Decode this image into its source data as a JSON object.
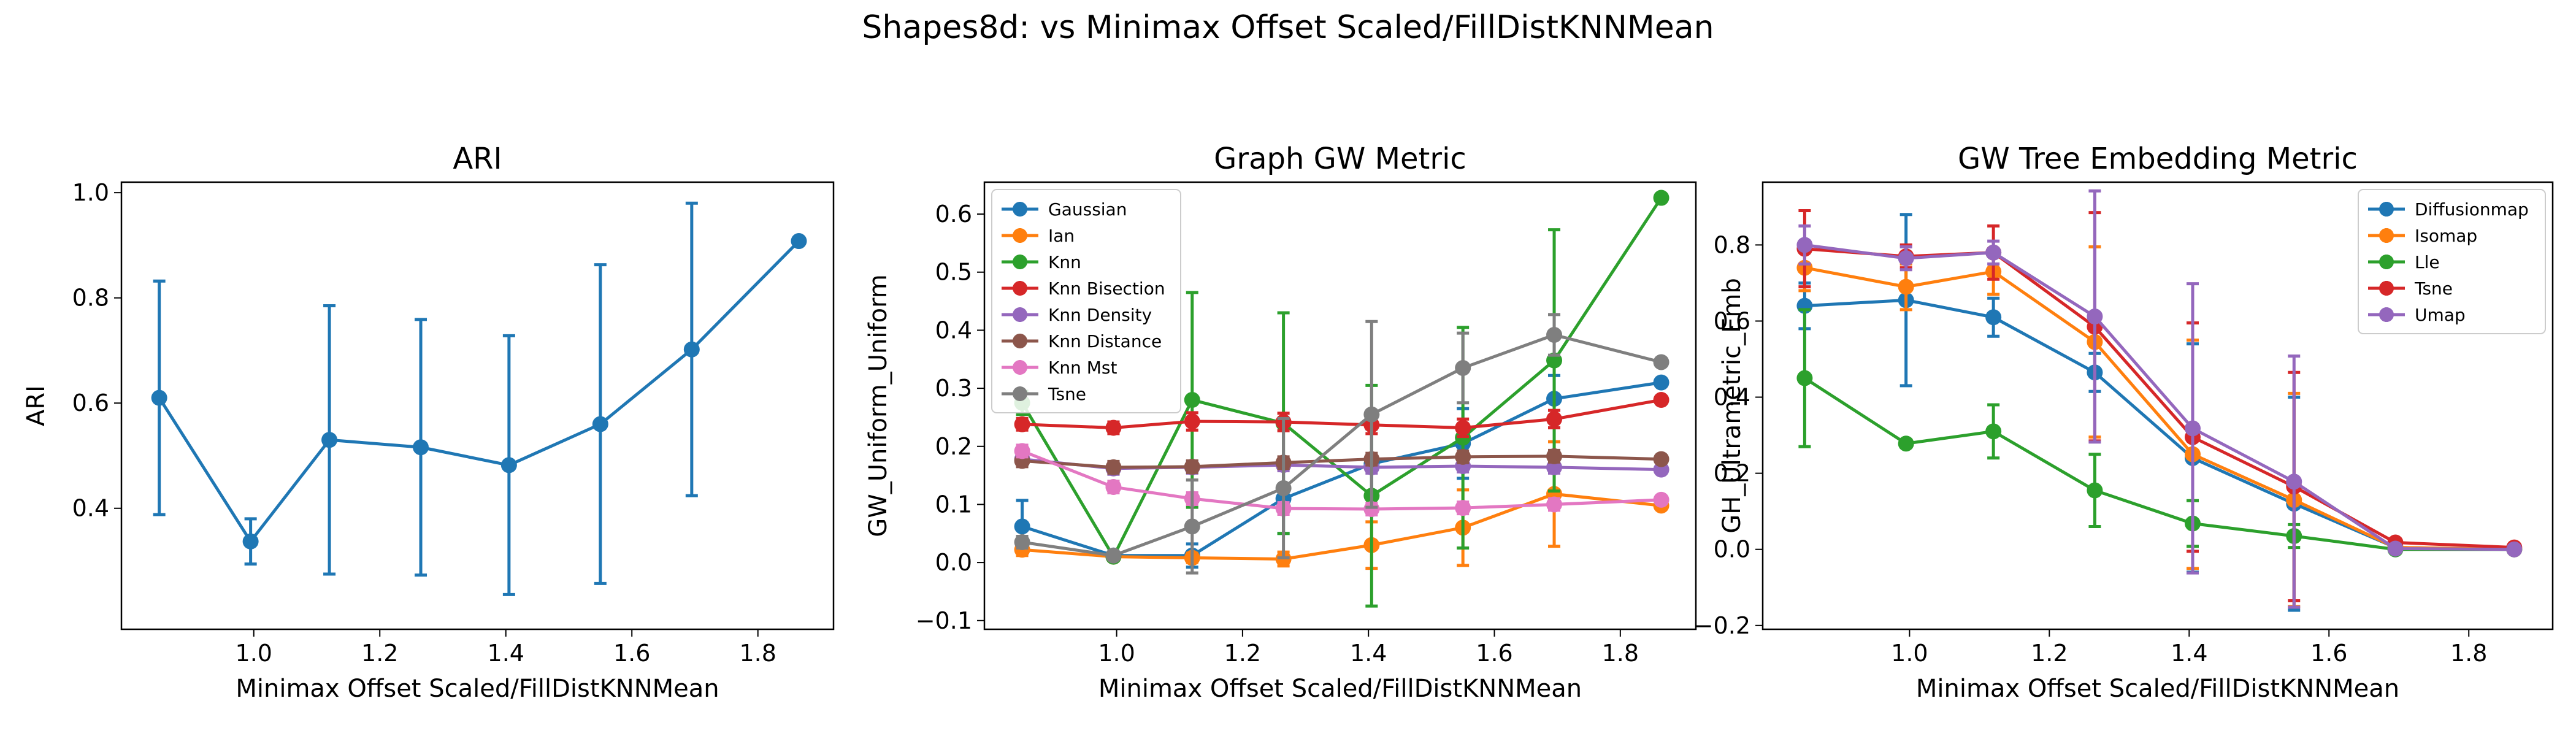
{
  "figure": {
    "title": "Shapes8d: vs Minimax Offset Scaled/FillDistKNNMean"
  },
  "chart_data": [
    {
      "type": "line",
      "title": "ARI",
      "xlabel": "Minimax Offset Scaled/FillDistKNNMean",
      "ylabel": "ARI",
      "xlim": [
        0.79,
        1.92
      ],
      "ylim": [
        0.17,
        1.02
      ],
      "xticks": [
        1.0,
        1.2,
        1.4,
        1.6,
        1.8
      ],
      "xtick_labels": [
        "1.0",
        "1.2",
        "1.4",
        "1.6",
        "1.8"
      ],
      "yticks": [
        0.4,
        0.6,
        0.8,
        1.0
      ],
      "ytick_labels": [
        "0.4",
        "0.6",
        "0.8",
        "1.0"
      ],
      "legend": null,
      "grid": false,
      "series": [
        {
          "name": "",
          "color": "#1f77b4",
          "x": [
            0.85,
            0.995,
            1.12,
            1.265,
            1.405,
            1.55,
            1.695,
            1.865
          ],
          "y": [
            0.61,
            0.337,
            0.53,
            0.516,
            0.482,
            0.56,
            0.702,
            0.908
          ],
          "err": [
            0.222,
            0.043,
            0.255,
            0.243,
            0.246,
            0.303,
            0.278,
            0.0
          ]
        }
      ]
    },
    {
      "type": "line",
      "title": "Graph GW Metric",
      "xlabel": "Minimax Offset Scaled/FillDistKNNMean",
      "ylabel": "GW_Uniform_Uniform",
      "xlim": [
        0.79,
        1.92
      ],
      "ylim": [
        -0.115,
        0.655
      ],
      "xticks": [
        1.0,
        1.2,
        1.4,
        1.6,
        1.8
      ],
      "xtick_labels": [
        "1.0",
        "1.2",
        "1.4",
        "1.6",
        "1.8"
      ],
      "yticks": [
        -0.1,
        0.0,
        0.1,
        0.2,
        0.3,
        0.4,
        0.5,
        0.6
      ],
      "ytick_labels": [
        "−0.1",
        "0.0",
        "0.1",
        "0.2",
        "0.3",
        "0.4",
        "0.5",
        "0.6"
      ],
      "legend": "top-left",
      "grid": false,
      "series": [
        {
          "name": "Gaussian",
          "color": "#1f77b4",
          "x": [
            0.85,
            0.995,
            1.12,
            1.265,
            1.405,
            1.55,
            1.695,
            1.865
          ],
          "y": [
            0.062,
            0.012,
            0.012,
            0.11,
            0.17,
            0.205,
            0.282,
            0.31
          ],
          "err": [
            0.045,
            0.005,
            0.02,
            0.06,
            0.06,
            0.06,
            0.04,
            0.0
          ]
        },
        {
          "name": "Ian",
          "color": "#ff7f0e",
          "x": [
            0.85,
            0.995,
            1.12,
            1.265,
            1.405,
            1.55,
            1.695,
            1.865
          ],
          "y": [
            0.022,
            0.01,
            0.008,
            0.006,
            0.03,
            0.06,
            0.118,
            0.098
          ],
          "err": [
            0.01,
            0.005,
            0.008,
            0.012,
            0.04,
            0.065,
            0.09,
            0.0
          ]
        },
        {
          "name": "Knn",
          "color": "#2ca02c",
          "x": [
            0.85,
            0.995,
            1.12,
            1.265,
            1.405,
            1.55,
            1.695,
            1.865
          ],
          "y": [
            0.275,
            0.01,
            0.28,
            0.24,
            0.115,
            0.215,
            0.348,
            0.628
          ],
          "err": [
            0.02,
            0.0,
            0.185,
            0.19,
            0.19,
            0.19,
            0.225,
            0.0
          ]
        },
        {
          "name": "Knn Bisection",
          "color": "#d62728",
          "x": [
            0.85,
            0.995,
            1.12,
            1.265,
            1.405,
            1.55,
            1.695,
            1.865
          ],
          "y": [
            0.238,
            0.232,
            0.243,
            0.242,
            0.237,
            0.232,
            0.247,
            0.28
          ],
          "err": [
            0.01,
            0.01,
            0.015,
            0.015,
            0.015,
            0.015,
            0.015,
            0.0
          ]
        },
        {
          "name": "Knn Density",
          "color": "#9467bd",
          "x": [
            0.85,
            0.995,
            1.12,
            1.265,
            1.405,
            1.55,
            1.695,
            1.865
          ],
          "y": [
            0.178,
            0.162,
            0.164,
            0.168,
            0.164,
            0.166,
            0.164,
            0.16
          ],
          "err": [
            0.01,
            0.01,
            0.01,
            0.01,
            0.01,
            0.01,
            0.01,
            0.0
          ]
        },
        {
          "name": "Knn Distance",
          "color": "#8c564b",
          "x": [
            0.85,
            0.995,
            1.12,
            1.265,
            1.405,
            1.55,
            1.695,
            1.865
          ],
          "y": [
            0.175,
            0.164,
            0.165,
            0.172,
            0.178,
            0.182,
            0.183,
            0.178
          ],
          "err": [
            0.01,
            0.01,
            0.01,
            0.01,
            0.01,
            0.01,
            0.01,
            0.0
          ]
        },
        {
          "name": "Knn Mst",
          "color": "#e377c2",
          "x": [
            0.85,
            0.995,
            1.12,
            1.265,
            1.405,
            1.55,
            1.695,
            1.865
          ],
          "y": [
            0.192,
            0.13,
            0.11,
            0.093,
            0.092,
            0.094,
            0.1,
            0.108
          ],
          "err": [
            0.01,
            0.01,
            0.01,
            0.01,
            0.01,
            0.01,
            0.01,
            0.0
          ]
        },
        {
          "name": "Tsne",
          "color": "#7f7f7f",
          "x": [
            0.85,
            0.995,
            1.12,
            1.265,
            1.405,
            1.55,
            1.695,
            1.865
          ],
          "y": [
            0.035,
            0.012,
            0.062,
            0.128,
            0.255,
            0.335,
            0.392,
            0.345
          ],
          "err": [
            0.01,
            0.005,
            0.08,
            0.12,
            0.16,
            0.06,
            0.035,
            0.0
          ]
        }
      ]
    },
    {
      "type": "line",
      "title": "GW Tree Embedding Metric",
      "xlabel": "Minimax Offset Scaled/FillDistKNNMean",
      "ylabel": "GH_Ultrametric_Emb",
      "xlim": [
        0.79,
        1.92
      ],
      "ylim": [
        -0.21,
        0.965
      ],
      "xticks": [
        1.0,
        1.2,
        1.4,
        1.6,
        1.8
      ],
      "xtick_labels": [
        "1.0",
        "1.2",
        "1.4",
        "1.6",
        "1.8"
      ],
      "yticks": [
        -0.2,
        0.0,
        0.2,
        0.4,
        0.6,
        0.8
      ],
      "ytick_labels": [
        "−0.2",
        "0.0",
        "0.2",
        "0.4",
        "0.6",
        "0.8"
      ],
      "legend": "top-right",
      "grid": false,
      "series": [
        {
          "name": "Diffusionmap",
          "color": "#1f77b4",
          "x": [
            0.85,
            0.995,
            1.12,
            1.265,
            1.405,
            1.55,
            1.695,
            1.865
          ],
          "y": [
            0.64,
            0.655,
            0.61,
            0.465,
            0.24,
            0.12,
            0.005,
            0.0
          ],
          "err": [
            0.06,
            0.225,
            0.05,
            0.05,
            0.3,
            0.28,
            0.01,
            0.0
          ]
        },
        {
          "name": "Isomap",
          "color": "#ff7f0e",
          "x": [
            0.85,
            0.995,
            1.12,
            1.265,
            1.405,
            1.55,
            1.695,
            1.865
          ],
          "y": [
            0.74,
            0.69,
            0.73,
            0.545,
            0.25,
            0.13,
            0.005,
            0.0
          ],
          "err": [
            0.06,
            0.06,
            0.06,
            0.25,
            0.3,
            0.28,
            0.01,
            0.0
          ]
        },
        {
          "name": "Lle",
          "color": "#2ca02c",
          "x": [
            0.85,
            0.995,
            1.12,
            1.265,
            1.405,
            1.55,
            1.695,
            1.865
          ],
          "y": [
            0.45,
            0.278,
            0.31,
            0.155,
            0.068,
            0.035,
            0.0,
            0.0
          ],
          "err": [
            0.18,
            0.01,
            0.07,
            0.095,
            0.06,
            0.03,
            0.01,
            0.0
          ]
        },
        {
          "name": "Tsne",
          "color": "#d62728",
          "x": [
            0.85,
            0.995,
            1.12,
            1.265,
            1.405,
            1.55,
            1.695,
            1.865
          ],
          "y": [
            0.79,
            0.77,
            0.78,
            0.585,
            0.295,
            0.165,
            0.018,
            0.005
          ],
          "err": [
            0.1,
            0.03,
            0.07,
            0.3,
            0.3,
            0.3,
            0.01,
            0.0
          ]
        },
        {
          "name": "Umap",
          "color": "#9467bd",
          "x": [
            0.85,
            0.995,
            1.12,
            1.265,
            1.405,
            1.55,
            1.695,
            1.865
          ],
          "y": [
            0.8,
            0.765,
            0.78,
            0.612,
            0.318,
            0.178,
            0.002,
            0.0
          ],
          "err": [
            0.05,
            0.03,
            0.03,
            0.33,
            0.38,
            0.33,
            0.01,
            0.0
          ]
        }
      ]
    }
  ]
}
